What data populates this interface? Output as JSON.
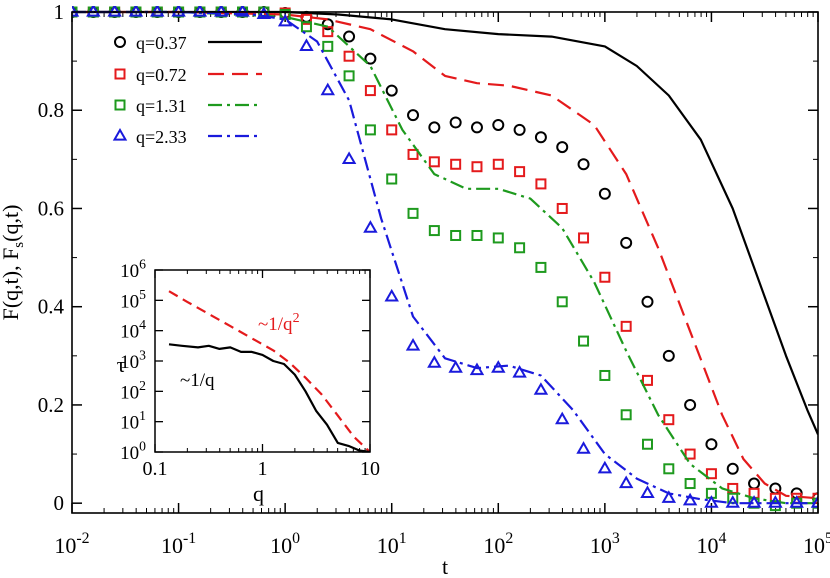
{
  "chart_data": [
    {
      "type": "scatter+line",
      "title": "",
      "xlabel": "t",
      "ylabel": "F(q,t), F_s(q,t)",
      "ylabel_main": "F(q,t), F",
      "ylabel_sub": "s",
      "ylabel_tail": "(q,t)",
      "xscale": "log",
      "xlim": [
        0.01,
        100000
      ],
      "ylim": [
        -0.02,
        1.0
      ],
      "x_ticks": [
        {
          "base": "10",
          "exp": "-2",
          "v": 0.01
        },
        {
          "base": "10",
          "exp": "-1",
          "v": 0.1
        },
        {
          "base": "10",
          "exp": "0",
          "v": 1
        },
        {
          "base": "10",
          "exp": "1",
          "v": 10
        },
        {
          "base": "10",
          "exp": "2",
          "v": 100
        },
        {
          "base": "10",
          "exp": "3",
          "v": 1000
        },
        {
          "base": "10",
          "exp": "4",
          "v": 10000
        },
        {
          "base": "10",
          "exp": "5",
          "v": 100000
        }
      ],
      "y_ticks": [
        {
          "label": "0",
          "v": 0
        },
        {
          "label": "0.2",
          "v": 0.2
        },
        {
          "label": "0.4",
          "v": 0.4
        },
        {
          "label": "0.6",
          "v": 0.6
        },
        {
          "label": "0.8",
          "v": 0.8
        },
        {
          "label": "1",
          "v": 1.0
        }
      ],
      "legend_position": "top-left",
      "series": [
        {
          "name": "q=0.37",
          "color": "#000000",
          "marker": "circle",
          "line_style": "solid",
          "markers": {
            "logt": [
              -2,
              -1.8,
              -1.6,
              -1.4,
              -1.2,
              -1,
              -0.8,
              -0.6,
              -0.4,
              -0.2,
              0,
              0.2,
              0.4,
              0.6,
              0.8,
              1,
              1.2,
              1.4,
              1.6,
              1.8,
              2,
              2.2,
              2.4,
              2.6,
              2.8,
              3,
              3.2,
              3.4,
              3.6,
              3.8,
              4,
              4.2,
              4.4,
              4.6,
              4.8,
              5
            ],
            "y": [
              1,
              1,
              1,
              1,
              1,
              1,
              1,
              1,
              1,
              1,
              0.998,
              0.99,
              0.975,
              0.95,
              0.905,
              0.84,
              0.79,
              0.765,
              0.775,
              0.765,
              0.77,
              0.76,
              0.745,
              0.725,
              0.69,
              0.63,
              0.53,
              0.41,
              0.3,
              0.2,
              0.12,
              0.07,
              0.04,
              0.03,
              0.02,
              0.01
            ]
          },
          "curve": {
            "logt": [
              -2,
              -1,
              0,
              0.5,
              1,
              1.5,
              2,
              2.5,
              3,
              3.3,
              3.6,
              3.9,
              4.2,
              4.5,
              4.7,
              4.9,
              5
            ],
            "y": [
              1,
              1,
              1,
              0.995,
              0.985,
              0.965,
              0.955,
              0.95,
              0.93,
              0.89,
              0.83,
              0.74,
              0.6,
              0.42,
              0.3,
              0.19,
              0.14
            ]
          }
        },
        {
          "name": "q=0.72",
          "color": "#e41a1c",
          "marker": "square",
          "line_style": "dashed",
          "markers": {
            "logt": [
              -2,
              -1.8,
              -1.6,
              -1.4,
              -1.2,
              -1,
              -0.8,
              -0.6,
              -0.4,
              -0.2,
              0,
              0.2,
              0.4,
              0.6,
              0.8,
              1,
              1.2,
              1.4,
              1.6,
              1.8,
              2,
              2.2,
              2.4,
              2.6,
              2.8,
              3,
              3.2,
              3.4,
              3.6,
              3.8,
              4,
              4.2,
              4.4,
              4.6,
              4.8,
              5
            ],
            "y": [
              1,
              1,
              1,
              1,
              1,
              1,
              1,
              1,
              1,
              1,
              0.998,
              0.985,
              0.96,
              0.91,
              0.84,
              0.76,
              0.71,
              0.695,
              0.69,
              0.685,
              0.69,
              0.675,
              0.65,
              0.6,
              0.54,
              0.46,
              0.36,
              0.25,
              0.17,
              0.1,
              0.06,
              0.03,
              0.02,
              0.01,
              0.01,
              0.01
            ]
          },
          "curve": {
            "logt": [
              -2,
              -1,
              0,
              0.4,
              0.8,
              1.2,
              1.5,
              1.8,
              2.1,
              2.5,
              2.9,
              3.2,
              3.5,
              3.8,
              4.1,
              4.3,
              4.5,
              4.7,
              5
            ],
            "y": [
              1,
              1,
              0.995,
              0.985,
              0.965,
              0.92,
              0.87,
              0.855,
              0.85,
              0.83,
              0.77,
              0.67,
              0.52,
              0.35,
              0.18,
              0.09,
              0.04,
              0.015,
              0.01
            ]
          }
        },
        {
          "name": "q=1.31",
          "color": "#1e9a1e",
          "marker": "square",
          "line_style": "dashdot",
          "markers": {
            "logt": [
              -2,
              -1.8,
              -1.6,
              -1.4,
              -1.2,
              -1,
              -0.8,
              -0.6,
              -0.4,
              -0.2,
              0,
              0.2,
              0.4,
              0.6,
              0.8,
              1,
              1.2,
              1.4,
              1.6,
              1.8,
              2,
              2.2,
              2.4,
              2.6,
              2.8,
              3,
              3.2,
              3.4,
              3.6,
              3.8,
              4,
              4.2,
              4.4,
              4.6,
              4.8,
              5
            ],
            "y": [
              1,
              1,
              1,
              1,
              1,
              1,
              1,
              1,
              1,
              1,
              0.995,
              0.97,
              0.93,
              0.87,
              0.76,
              0.66,
              0.59,
              0.555,
              0.545,
              0.545,
              0.54,
              0.52,
              0.48,
              0.41,
              0.33,
              0.26,
              0.18,
              0.12,
              0.07,
              0.04,
              0.02,
              0.01,
              0.0,
              -0.005,
              0.0,
              0.0
            ]
          },
          "curve": {
            "logt": [
              -2,
              -1,
              0,
              0.4,
              0.8,
              1.1,
              1.4,
              1.7,
              2,
              2.3,
              2.6,
              2.9,
              3.2,
              3.5,
              3.8,
              4.1,
              4.4,
              4.7,
              5
            ],
            "y": [
              1,
              1,
              0.99,
              0.97,
              0.89,
              0.76,
              0.67,
              0.64,
              0.64,
              0.62,
              0.56,
              0.45,
              0.31,
              0.18,
              0.08,
              0.03,
              0.01,
              0.0,
              0.0
            ]
          }
        },
        {
          "name": "q=2.33",
          "color": "#1a1adc",
          "marker": "triangle",
          "line_style": "dashdot",
          "markers": {
            "logt": [
              -2,
              -1.8,
              -1.6,
              -1.4,
              -1.2,
              -1,
              -0.8,
              -0.6,
              -0.4,
              -0.2,
              0,
              0.2,
              0.4,
              0.6,
              0.8,
              1,
              1.2,
              1.4,
              1.6,
              1.8,
              2,
              2.2,
              2.4,
              2.6,
              2.8,
              3,
              3.2,
              3.4,
              3.6,
              3.8,
              4,
              4.2,
              4.4,
              4.6,
              4.8,
              5
            ],
            "y": [
              1,
              1,
              1,
              1,
              1,
              1,
              1,
              1,
              1,
              0.995,
              0.98,
              0.93,
              0.84,
              0.7,
              0.56,
              0.42,
              0.32,
              0.285,
              0.275,
              0.27,
              0.275,
              0.265,
              0.23,
              0.17,
              0.11,
              0.07,
              0.04,
              0.02,
              0.01,
              0.005,
              0.0,
              0.0,
              0.0,
              0.0,
              0.0,
              0.0
            ]
          },
          "curve": {
            "logt": [
              -2,
              -1,
              -0.3,
              0,
              0.3,
              0.6,
              0.9,
              1.2,
              1.5,
              1.8,
              2.1,
              2.4,
              2.7,
              3,
              3.3,
              3.6,
              3.9,
              4.2,
              5
            ],
            "y": [
              1,
              1,
              0.995,
              0.985,
              0.94,
              0.82,
              0.58,
              0.38,
              0.295,
              0.275,
              0.28,
              0.26,
              0.19,
              0.1,
              0.05,
              0.02,
              0.008,
              0.0,
              0.0
            ]
          }
        }
      ]
    },
    {
      "type": "line",
      "inset": true,
      "xlabel": "q",
      "ylabel": "τ",
      "xscale": "log",
      "yscale": "log",
      "xlim": [
        0.1,
        10
      ],
      "ylim": [
        1,
        1000000
      ],
      "x_ticks": [
        {
          "label": "0.1",
          "v": 0.1
        },
        {
          "label": "1",
          "v": 1
        },
        {
          "label": "10",
          "v": 10
        }
      ],
      "y_ticks": [
        {
          "base": "10",
          "exp": "0",
          "v": 1
        },
        {
          "base": "10",
          "exp": "1",
          "v": 10
        },
        {
          "base": "10",
          "exp": "2",
          "v": 100
        },
        {
          "base": "10",
          "exp": "3",
          "v": 1000
        },
        {
          "base": "10",
          "exp": "4",
          "v": 10000
        },
        {
          "base": "10",
          "exp": "5",
          "v": 100000
        },
        {
          "base": "10",
          "exp": "6",
          "v": 1000000
        }
      ],
      "annotations": [
        {
          "text": "~1/q",
          "sup": "2",
          "color": "#e41a1c"
        },
        {
          "text": "~1/q",
          "sup": "",
          "color": "#000000"
        }
      ],
      "series": [
        {
          "name": "~1/q^2",
          "color": "#e41a1c",
          "line_style": "dashed",
          "logq": [
            -0.87,
            -0.7,
            -0.5,
            -0.3,
            -0.1,
            0.1,
            0.25,
            0.4,
            0.55,
            0.7,
            0.85,
            1.0
          ],
          "logtau": [
            5.3,
            4.95,
            4.55,
            4.15,
            3.75,
            3.35,
            2.95,
            2.45,
            1.9,
            1.2,
            0.5,
            0.0
          ]
        },
        {
          "name": "~1/q",
          "color": "#000000",
          "line_style": "solid",
          "logq": [
            -0.87,
            -0.75,
            -0.6,
            -0.5,
            -0.4,
            -0.3,
            -0.2,
            -0.1,
            0.0,
            0.1,
            0.2,
            0.3,
            0.4,
            0.5,
            0.6,
            0.7,
            0.8,
            0.9,
            1.0
          ],
          "logtau": [
            3.55,
            3.5,
            3.45,
            3.5,
            3.4,
            3.45,
            3.3,
            3.3,
            3.2,
            3.0,
            2.9,
            2.55,
            2.0,
            1.35,
            0.9,
            0.3,
            0.2,
            0.05,
            0.0
          ]
        }
      ]
    }
  ]
}
